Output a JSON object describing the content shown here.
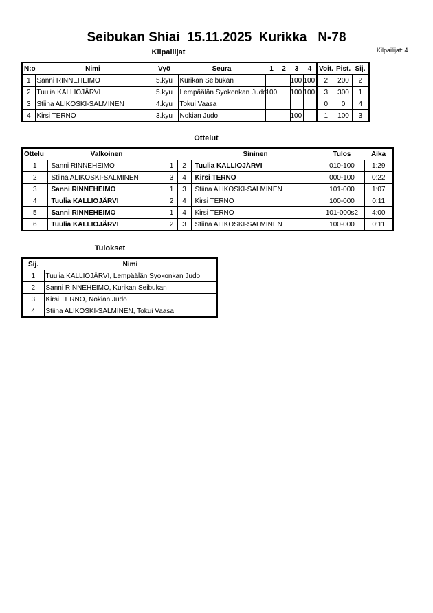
{
  "title": "Seibukan Shiai  15.11.2025  Kurikka   N-78",
  "competitor_count": "Kilpailijat: 4",
  "competitors": {
    "heading": "Kilpailijat",
    "columns": [
      "N:o",
      "Nimi",
      "Vyö",
      "Seura",
      "1",
      "2",
      "3",
      "4",
      "Voit.",
      "Pist.",
      "Sij."
    ],
    "rows": [
      [
        "1",
        "Sanni RINNEHEIMO",
        "5.kyu",
        "Kurikan Seibukan",
        "",
        "",
        "100",
        "100",
        "2",
        "200",
        "2"
      ],
      [
        "2",
        "Tuulia KALLIOJÄRVI",
        "5.kyu",
        "Lempäälän Syokonkan Judo",
        "100",
        "",
        "100",
        "100",
        "3",
        "300",
        "1"
      ],
      [
        "3",
        "Stiina ALIKOSKI-SALMINEN",
        "4.kyu",
        "Tokui Vaasa",
        "",
        "",
        "",
        "",
        "0",
        "0",
        "4"
      ],
      [
        "4",
        "Kirsi TERNO",
        "3.kyu",
        "Nokian Judo",
        "",
        "",
        "100",
        "",
        "1",
        "100",
        "3"
      ]
    ]
  },
  "matches": {
    "heading": "Ottelut",
    "columns": [
      "Ottelu",
      "Valkoinen",
      "",
      "",
      "Sininen",
      "Tulos",
      "Aika"
    ],
    "rows": [
      {
        "n": "1",
        "white": "Sanni RINNEHEIMO",
        "wn": "1",
        "bn": "2",
        "blue": "Tuulia KALLIOJÄRVI",
        "result": "010-100",
        "time": "1:29",
        "winner": "blue"
      },
      {
        "n": "2",
        "white": "Stiina ALIKOSKI-SALMINEN",
        "wn": "3",
        "bn": "4",
        "blue": "Kirsi TERNO",
        "result": "000-100",
        "time": "0:22",
        "winner": "blue"
      },
      {
        "n": "3",
        "white": "Sanni RINNEHEIMO",
        "wn": "1",
        "bn": "3",
        "blue": "Stiina ALIKOSKI-SALMINEN",
        "result": "101-000",
        "time": "1:07",
        "winner": "white"
      },
      {
        "n": "4",
        "white": "Tuulia KALLIOJÄRVI",
        "wn": "2",
        "bn": "4",
        "blue": "Kirsi TERNO",
        "result": "100-000",
        "time": "0:11",
        "winner": "white"
      },
      {
        "n": "5",
        "white": "Sanni RINNEHEIMO",
        "wn": "1",
        "bn": "4",
        "blue": "Kirsi TERNO",
        "result": "101-000s2",
        "time": "4:00",
        "winner": "white"
      },
      {
        "n": "6",
        "white": "Tuulia KALLIOJÄRVI",
        "wn": "2",
        "bn": "3",
        "blue": "Stiina ALIKOSKI-SALMINEN",
        "result": "100-000",
        "time": "0:11",
        "winner": "white"
      }
    ]
  },
  "results": {
    "heading": "Tulokset",
    "columns": [
      "Sij.",
      "Nimi"
    ],
    "rows": [
      [
        "1",
        "Tuulia KALLIOJÄRVI, Lempäälän Syokonkan Judo"
      ],
      [
        "2",
        "Sanni RINNEHEIMO, Kurikan Seibukan"
      ],
      [
        "3",
        "Kirsi TERNO, Nokian Judo"
      ],
      [
        "4",
        "Stiina ALIKOSKI-SALMINEN, Tokui Vaasa"
      ]
    ]
  }
}
